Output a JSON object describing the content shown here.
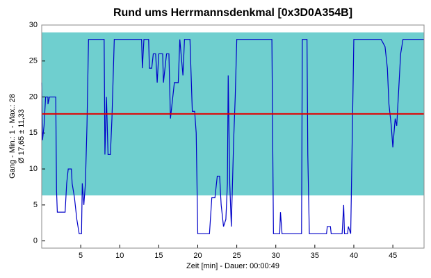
{
  "chart_data": {
    "type": "line",
    "title": "Rund ums Herrmannsdenkmal [0x3D0A354B]",
    "y_label": [
      "Gang - Min.: 1 - Max.: 28",
      "Ø 17,65 ± 11,33"
    ],
    "x_label": "Zeit [min] - Dauer: 00:00:49",
    "xlim": [
      0,
      49
    ],
    "ylim": [
      -1,
      30
    ],
    "xticks": [
      5,
      10,
      15,
      20,
      25,
      30,
      35,
      40,
      45
    ],
    "yticks": [
      0,
      5,
      10,
      15,
      20,
      25,
      30
    ],
    "band": [
      6.32,
      28.98
    ],
    "band_color": "#6fcfcf",
    "mean_line": 17.65,
    "mean_color": "#e00000",
    "series": [
      {
        "color": "#0000c8",
        "x": [
          0,
          0.1,
          0.3,
          0.5,
          0.8,
          0.8,
          1.0,
          1.8,
          1.9,
          2.0,
          3.0,
          3.2,
          3.4,
          3.8,
          3.9,
          4.2,
          4.5,
          4.8,
          5.1,
          5.2,
          5.4,
          5.6,
          5.8,
          6.0,
          8.0,
          8.1,
          8.3,
          8.5,
          8.8,
          9.0,
          9.3,
          12.8,
          12.9,
          13.1,
          13.7,
          13.8,
          14.1,
          14.3,
          14.6,
          14.8,
          15.0,
          15.5,
          15.6,
          16.0,
          16.3,
          16.5,
          17.0,
          17.5,
          17.7,
          18.1,
          18.3,
          19.0,
          19.3,
          19.6,
          19.8,
          20.0,
          21.5,
          21.8,
          22.2,
          22.5,
          22.8,
          23.0,
          23.3,
          23.6,
          23.8,
          23.9,
          24.1,
          24.3,
          24.6,
          24.8,
          25.0,
          29.5,
          29.7,
          30.5,
          30.6,
          30.8,
          33.3,
          33.4,
          34.0,
          34.1,
          34.3,
          36.5,
          36.6,
          37.0,
          37.1,
          38.5,
          38.7,
          38.8,
          39.2,
          39.3,
          39.6,
          40.0,
          43.5,
          44.0,
          44.3,
          44.5,
          44.8,
          45.0,
          45.3,
          45.5,
          45.7,
          46.0,
          46.3,
          49.0
        ],
        "values": [
          22,
          14,
          16,
          20,
          20,
          19,
          20,
          20,
          7,
          4,
          4,
          8,
          10,
          10,
          8,
          6,
          3,
          1,
          1,
          8,
          5,
          8,
          16,
          28,
          28,
          12,
          20,
          12,
          12,
          17,
          28,
          28,
          24,
          28,
          28,
          24,
          24,
          26,
          26,
          22,
          26,
          26,
          22,
          26,
          26,
          17,
          22,
          22,
          28,
          23,
          28,
          28,
          18,
          18,
          15,
          1,
          1,
          6,
          6,
          9,
          9,
          5,
          2,
          3,
          8,
          23,
          8,
          2,
          14,
          20,
          28,
          28,
          1,
          1,
          4,
          1,
          1,
          28,
          28,
          12,
          1,
          1,
          2,
          2,
          1,
          1,
          5,
          1,
          1,
          2,
          1,
          28,
          28,
          27,
          24,
          19,
          16,
          13,
          17,
          16,
          20,
          26,
          28,
          28
        ]
      }
    ]
  }
}
